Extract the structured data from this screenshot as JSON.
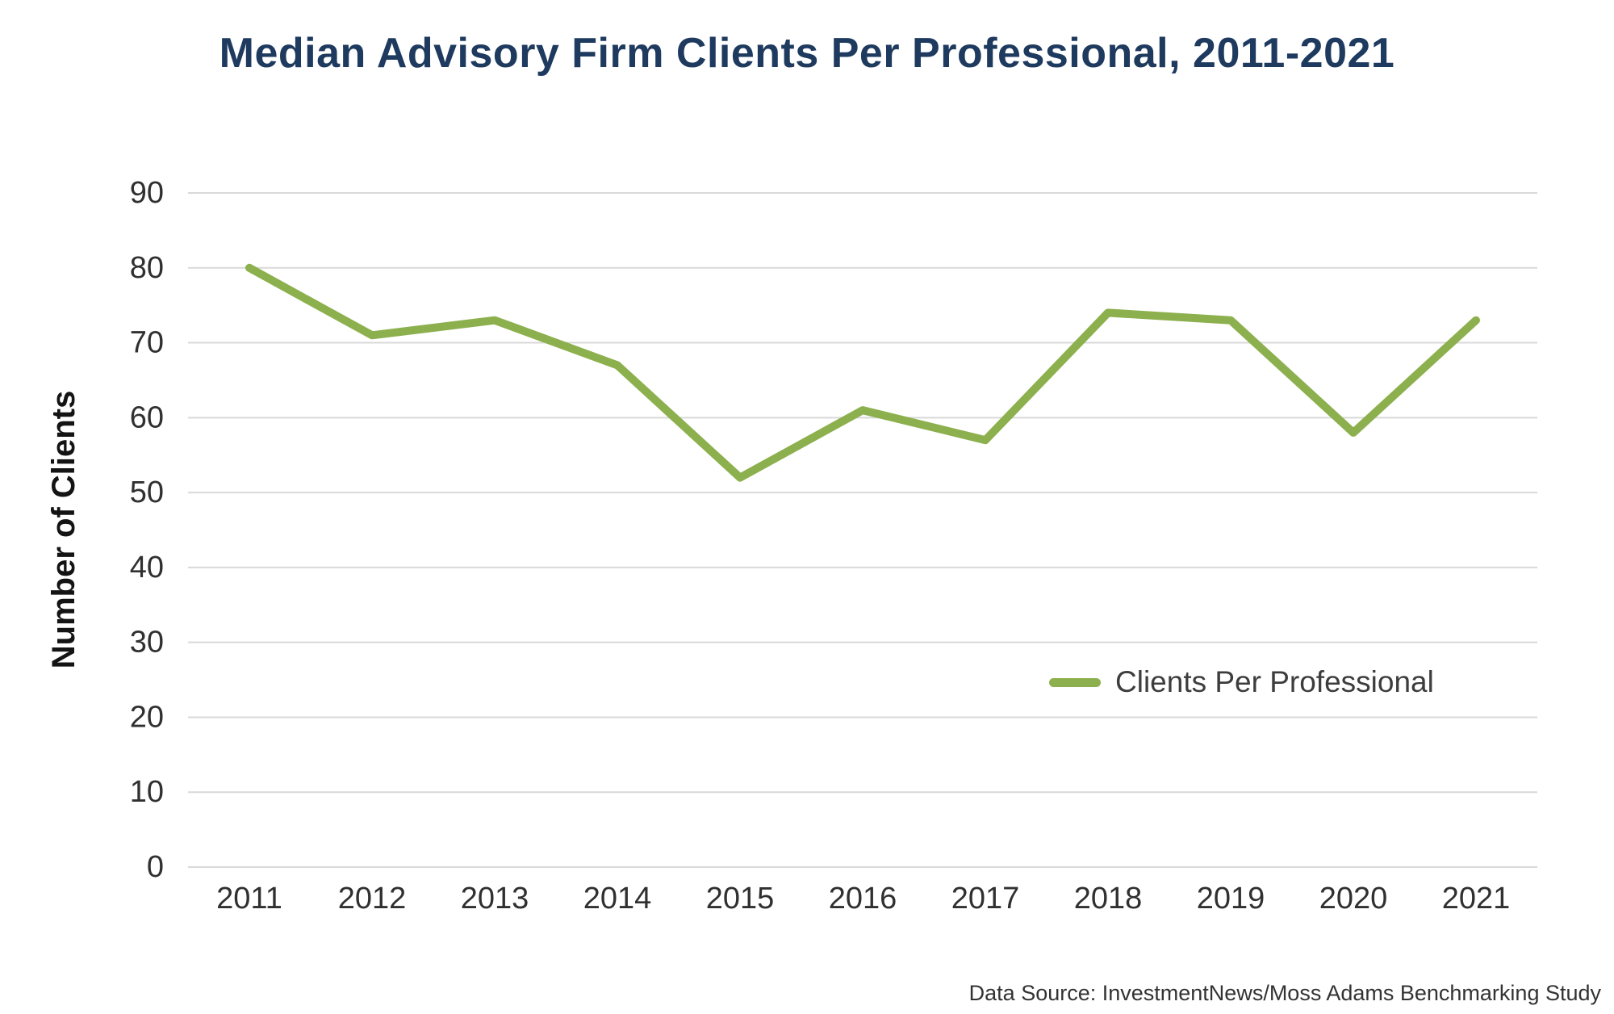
{
  "title": {
    "text": "Median Advisory Firm Clients Per Professional, 2011-2021",
    "color": "#1E3A5F"
  },
  "y_axis": {
    "title": "Number of Clients",
    "tick_labels": [
      "0",
      "10",
      "20",
      "30",
      "40",
      "50",
      "60",
      "70",
      "80",
      "90"
    ]
  },
  "x_axis": {
    "tick_labels": [
      "2011",
      "2012",
      "2013",
      "2014",
      "2015",
      "2016",
      "2017",
      "2018",
      "2019",
      "2020",
      "2021"
    ]
  },
  "legend": {
    "label": "Clients Per Professional",
    "swatch_color": "#8CB04D",
    "position": "middle-right"
  },
  "footer": {
    "source_note": "Data Source:  InvestmentNews/Moss Adams Benchmarking Study"
  },
  "chart_data": {
    "type": "line",
    "categories": [
      "2011",
      "2012",
      "2013",
      "2014",
      "2015",
      "2016",
      "2017",
      "2018",
      "2019",
      "2020",
      "2021"
    ],
    "series": [
      {
        "name": "Clients Per Professional",
        "color": "#8CB04D",
        "values": [
          80,
          71,
          73,
          67,
          52,
          61,
          57,
          74,
          73,
          58,
          73
        ]
      }
    ],
    "title": "Median Advisory Firm Clients Per Professional, 2011-2021",
    "xlabel": "",
    "ylabel": "Number of Clients",
    "ylim": [
      0,
      90
    ],
    "ytick_step": 10,
    "grid": true,
    "gridline_color": "#D9D9D9",
    "axis_text_color": "#303030",
    "legend_position": "middle-right"
  }
}
